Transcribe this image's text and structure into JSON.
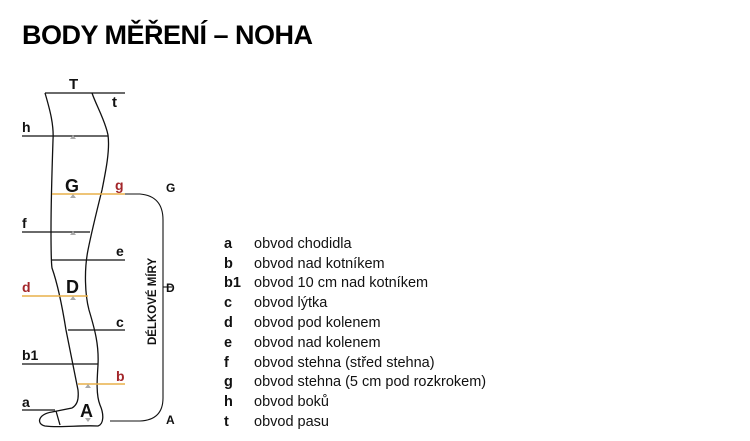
{
  "title": "BODY MĚŘENÍ – NOHA",
  "diagram": {
    "labels": {
      "T": "T",
      "t": "t",
      "h": "h",
      "G": "G",
      "g": "g",
      "f": "f",
      "e": "e",
      "D": "D",
      "d": "d",
      "c": "c",
      "b1": "b1",
      "b": "b",
      "a": "a",
      "A": "A"
    },
    "bracket": {
      "top": "G",
      "mid": "D",
      "bottom": "A",
      "caption": "DÉLKOVÉ MÍRY"
    },
    "colors": {
      "highlight_line": "#e8b04a",
      "highlight_text": "#a3262a",
      "line": "#111111",
      "marker": "#aaaaaa"
    }
  },
  "legend": [
    {
      "key": "a",
      "text": "obvod chodidla"
    },
    {
      "key": "b",
      "text": "obvod nad kotníkem"
    },
    {
      "key": "b1",
      "text": "obvod 10 cm nad kotníkem"
    },
    {
      "key": "c",
      "text": "obvod lýtka"
    },
    {
      "key": "d",
      "text": "obvod pod kolenem"
    },
    {
      "key": "e",
      "text": "obvod nad kolenem"
    },
    {
      "key": "f",
      "text": "obvod stehna (střed stehna)"
    },
    {
      "key": "g",
      "text": "obvod stehna (5 cm pod rozkrokem)"
    },
    {
      "key": "h",
      "text": "obvod boků"
    },
    {
      "key": "t",
      "text": "obvod pasu"
    }
  ]
}
